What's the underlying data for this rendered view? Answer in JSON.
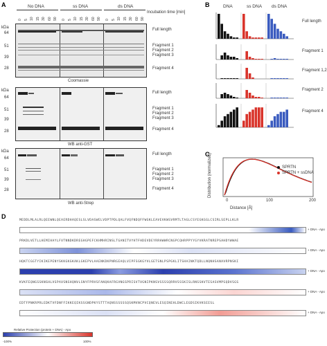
{
  "panels": {
    "A": "A",
    "B": "B",
    "C": "C",
    "D": "D"
  },
  "panelA": {
    "groups": [
      "No DNA",
      "ss DNA",
      "ds DNA"
    ],
    "time_label": "Incubation time [min]",
    "times": [
      "0",
      "5",
      "10",
      "15",
      "30",
      "60",
      "90"
    ],
    "kda": "kDa",
    "markers1": [
      "64",
      "51",
      "39",
      "28"
    ],
    "markers2": [
      "64",
      "51",
      "39",
      "28"
    ],
    "markers3": [
      "64",
      "51",
      "39",
      "28"
    ],
    "blot1_caption": "Coomassie",
    "blot2_caption": "WB anti-GST",
    "blot3_caption": "WB anti-Strep",
    "bands1": [
      "Full length",
      "Fragment 1",
      "Fragment 2",
      "Fragment 3",
      "Fragment 4"
    ],
    "bands2": [
      "Full length",
      "Fragment 1",
      "Fragment 2",
      "Fragment 3",
      "Fragment 4"
    ],
    "bands3": [
      "Full length",
      "Fragment 1",
      "Fragment 2",
      "Fragment 3",
      "Fragment 4"
    ]
  },
  "panelB": {
    "groups": [
      "DNA",
      "ss DNA",
      "ds DNA"
    ],
    "rows": [
      "Full length",
      "Fragment 1",
      "Fragment 1,2",
      "Fragment 2",
      "Fragment 4"
    ],
    "colors": {
      "none": "#111111",
      "ss": "#d9342b",
      "ds": "#3a5bbf"
    }
  },
  "panelC": {
    "xlabel": "Distance [Å]",
    "ylabel": "Distribution (normalized)",
    "legend": [
      "SPRTN",
      "SPRTN + ssDNA"
    ],
    "xticks": [
      "0",
      "100",
      "200"
    ],
    "colors": {
      "a": "#111111",
      "b": "#d9342b"
    }
  },
  "panelD": {
    "colorbar_min": "-100%",
    "colorbar_max": "100%",
    "colorbar_label": "Relative Protection (protein + DNA) - Apo",
    "legend_text": "+ DNA - Apo",
    "seq": [
      "MEDDLMLALRLQEEWNLQEAERDHAQESLSLVDASWELVDPTPDLQALFVQFNDQFFWGKLEAVEVKWSVRMTLTAGLCSYEGKGGLCSIRLSEPLLKLRPRKDLVETLLHEMIHAYLFVTNNDKDREGHGPEFCKHMHRINSLTGANITVYHTFHDEVDEYRRHWWRCNGPCQHRPPYYGYVKRATNREPSAHDYWWAEHQKTCGGTYIKIKEPENYSKKGKGKAKLGKEPVLAAENKDKPNRGEAQLVIPFSGKGYVLGETSNLPSPGKLITSHAINKTQDLLNQNHSANAVRPNSKIKVKFEQNGSSKNSHLVSPAVSNSHQNVLSNYFPRVSFANQKAFRGVNGSPRISVTVGNIPKNSVSSSSQRRVSSSKISLRNSSKVTESASVMPSQDVSGSEDTFPNKRPRLEDKTVFDNFFIKKEQIKSSGNDPKYSTTTAQNSSSSSSQSKMVNCPVCQNEVLESQINEHLDWCLEGDSIKVKSEESL"
    ]
  }
}
